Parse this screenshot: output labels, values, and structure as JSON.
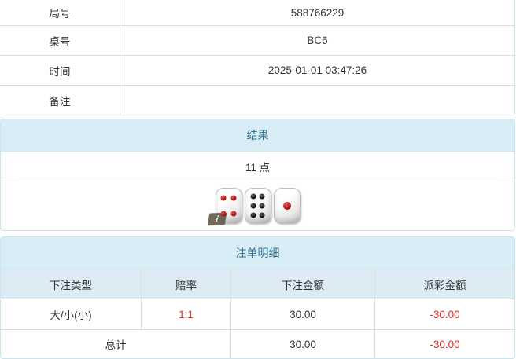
{
  "info_table": {
    "rows": [
      {
        "label": "局号",
        "value": "588766229"
      },
      {
        "label": "桌号",
        "value": "BC6"
      },
      {
        "label": "时间",
        "value": "2025-01-01 03:47:26"
      },
      {
        "label": "备注",
        "value": ""
      }
    ]
  },
  "result_panel": {
    "title": "结果",
    "points": "11 点",
    "dice": [
      {
        "value": 4,
        "color": "red"
      },
      {
        "value": 6,
        "color": "black"
      },
      {
        "value": 1,
        "color": "red"
      }
    ],
    "info_icon": "i"
  },
  "bets_panel": {
    "title": "注单明细",
    "columns": [
      "下注类型",
      "赔率",
      "下注金额",
      "派彩金额"
    ],
    "rows": [
      {
        "type": "大/小(小)",
        "odds": "1:1",
        "amount": "30.00",
        "payout": "-30.00"
      }
    ],
    "total": {
      "label": "总计",
      "amount": "30.00",
      "payout": "-30.00"
    }
  },
  "colors": {
    "panel_border": "#c9e4ee",
    "panel_header_bg": "#d9edf7",
    "panel_header_text": "#31708f",
    "subheader_bg": "#dcebf4",
    "table_border": "#dddddd",
    "text": "#333333",
    "negative": "#e12e2e"
  }
}
